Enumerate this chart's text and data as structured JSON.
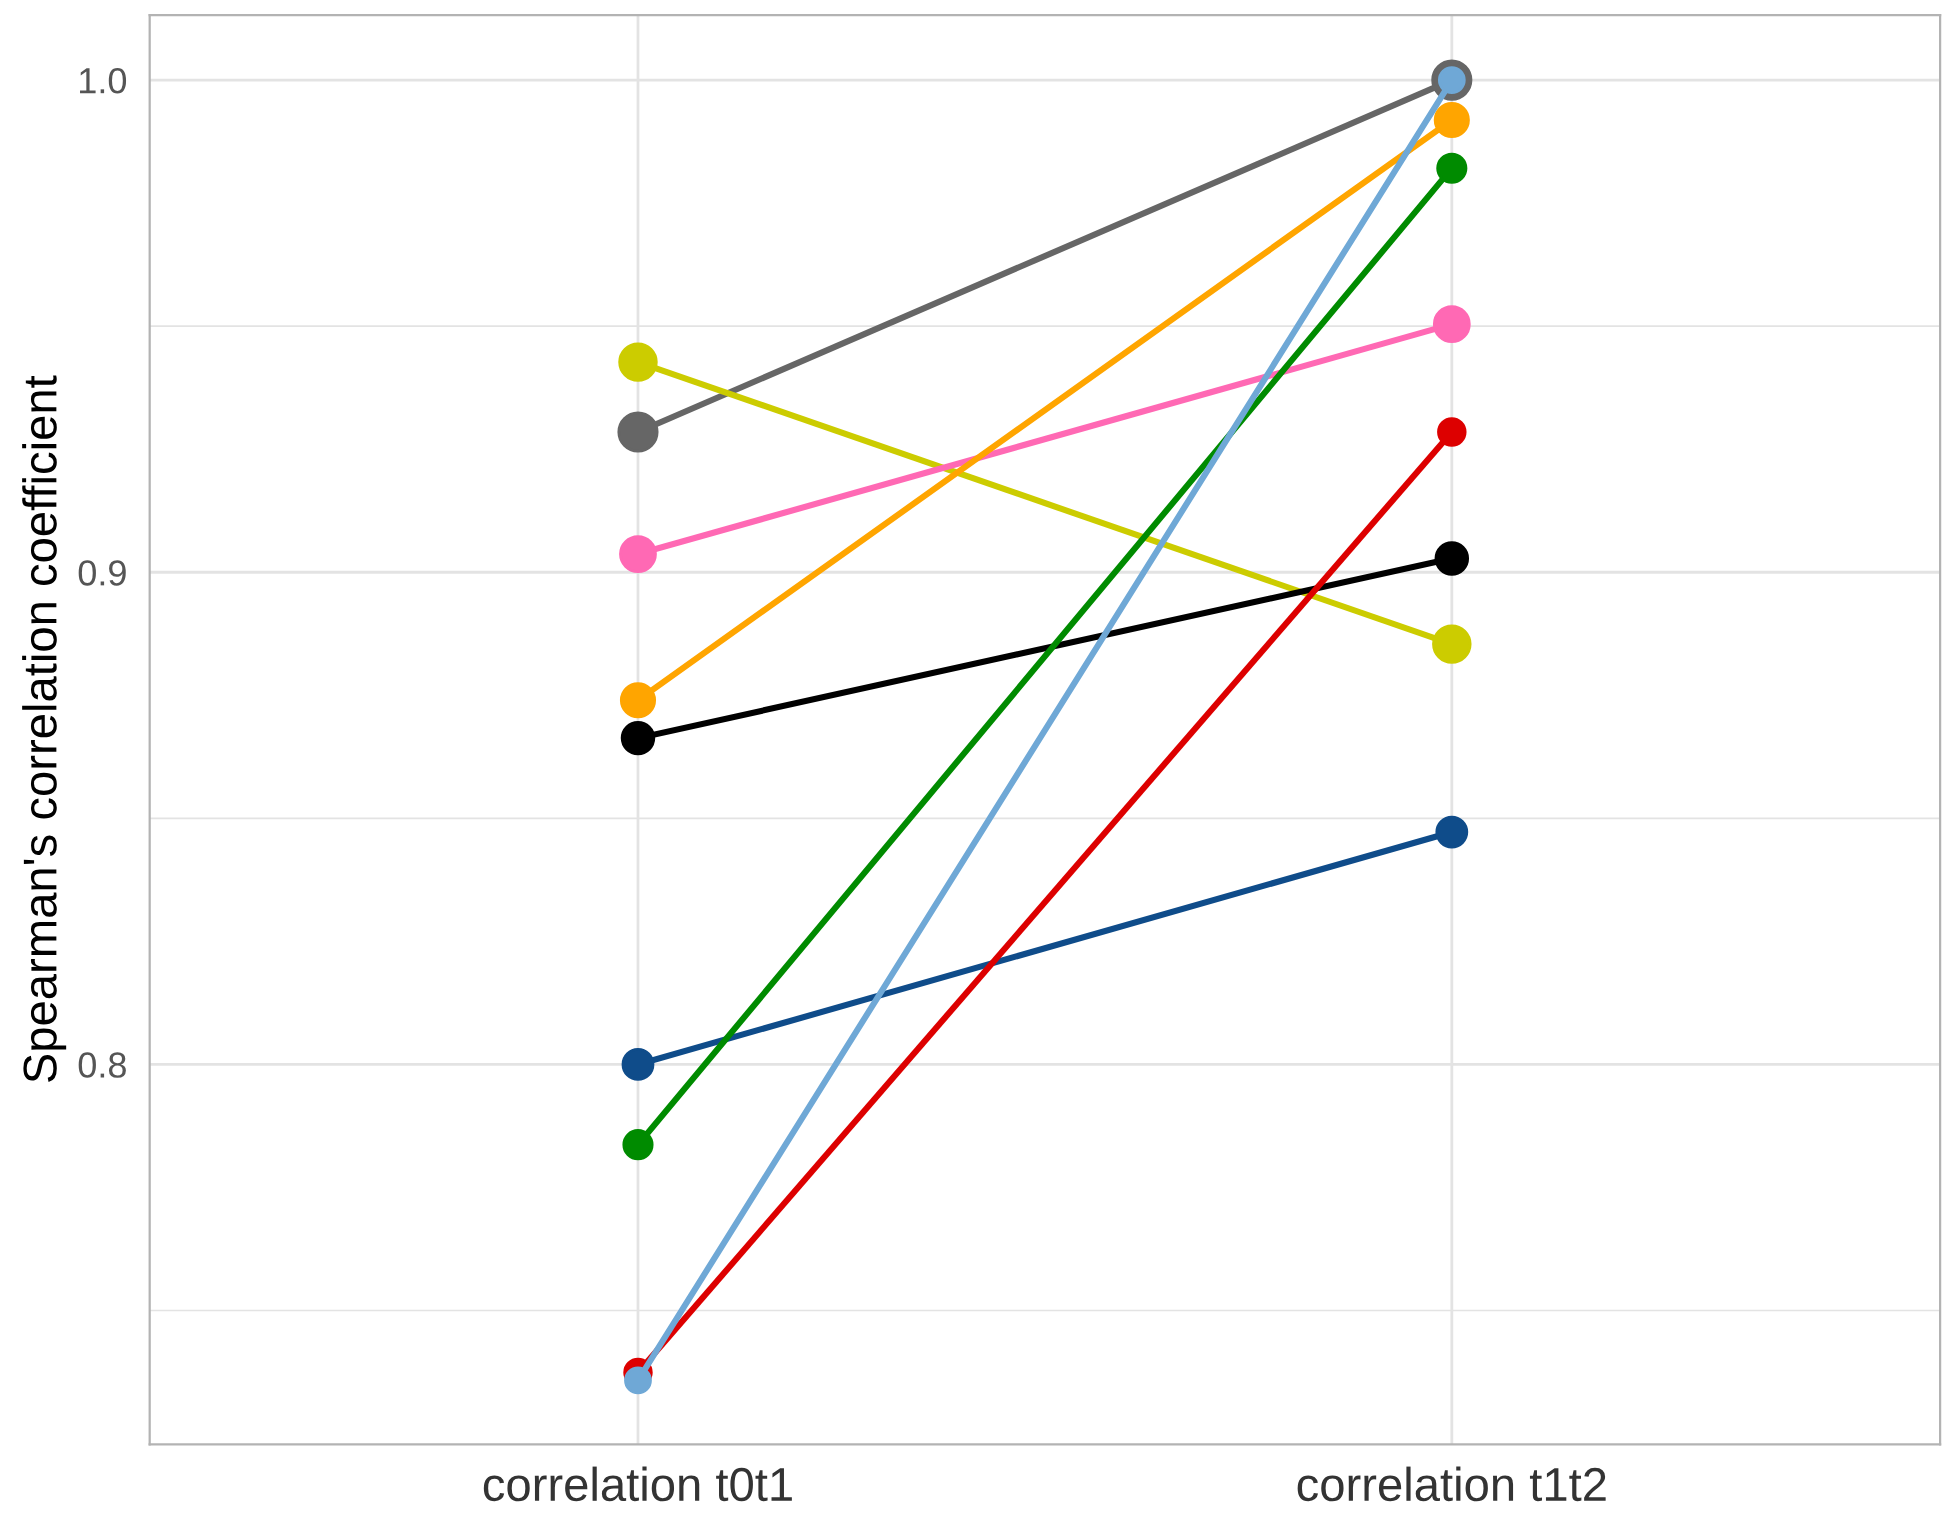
{
  "chart_data": {
    "type": "line",
    "ylabel": "Spearman's correlation coefficient",
    "categories": [
      "correlation t0t1",
      "correlation t1t2"
    ],
    "ylim": [
      0.7228,
      1.0132
    ],
    "yticks": [
      {
        "value": 0.75,
        "label": null
      },
      {
        "value": 0.8,
        "label": "0.8"
      },
      {
        "value": 0.85,
        "label": null
      },
      {
        "value": 0.9,
        "label": "0.9"
      },
      {
        "value": 0.95,
        "label": null
      },
      {
        "value": 1.0,
        "label": "1.0"
      }
    ],
    "grid": true,
    "marker": "circle",
    "line_style": "solid",
    "legend": false,
    "series": [
      {
        "color": "#666666",
        "values": [
          0.9285,
          1.0
        ]
      },
      {
        "color": "#cccc00",
        "values": [
          0.9427,
          0.8854
        ]
      },
      {
        "color": "#ff69b4",
        "values": [
          0.9037,
          0.9504
        ]
      },
      {
        "color": "#ffa500",
        "values": [
          0.874,
          0.9919
        ]
      },
      {
        "color": "#000000",
        "values": [
          0.8663,
          0.9028
        ]
      },
      {
        "color": "#0f4c8a",
        "values": [
          0.8,
          0.8472
        ]
      },
      {
        "color": "#008b00",
        "values": [
          0.7837,
          0.9821
        ]
      },
      {
        "color": "#dd0000",
        "values": [
          0.7374,
          0.9285
        ]
      },
      {
        "color": "#6fa8d6",
        "values": [
          0.7358,
          1.0
        ]
      }
    ]
  }
}
